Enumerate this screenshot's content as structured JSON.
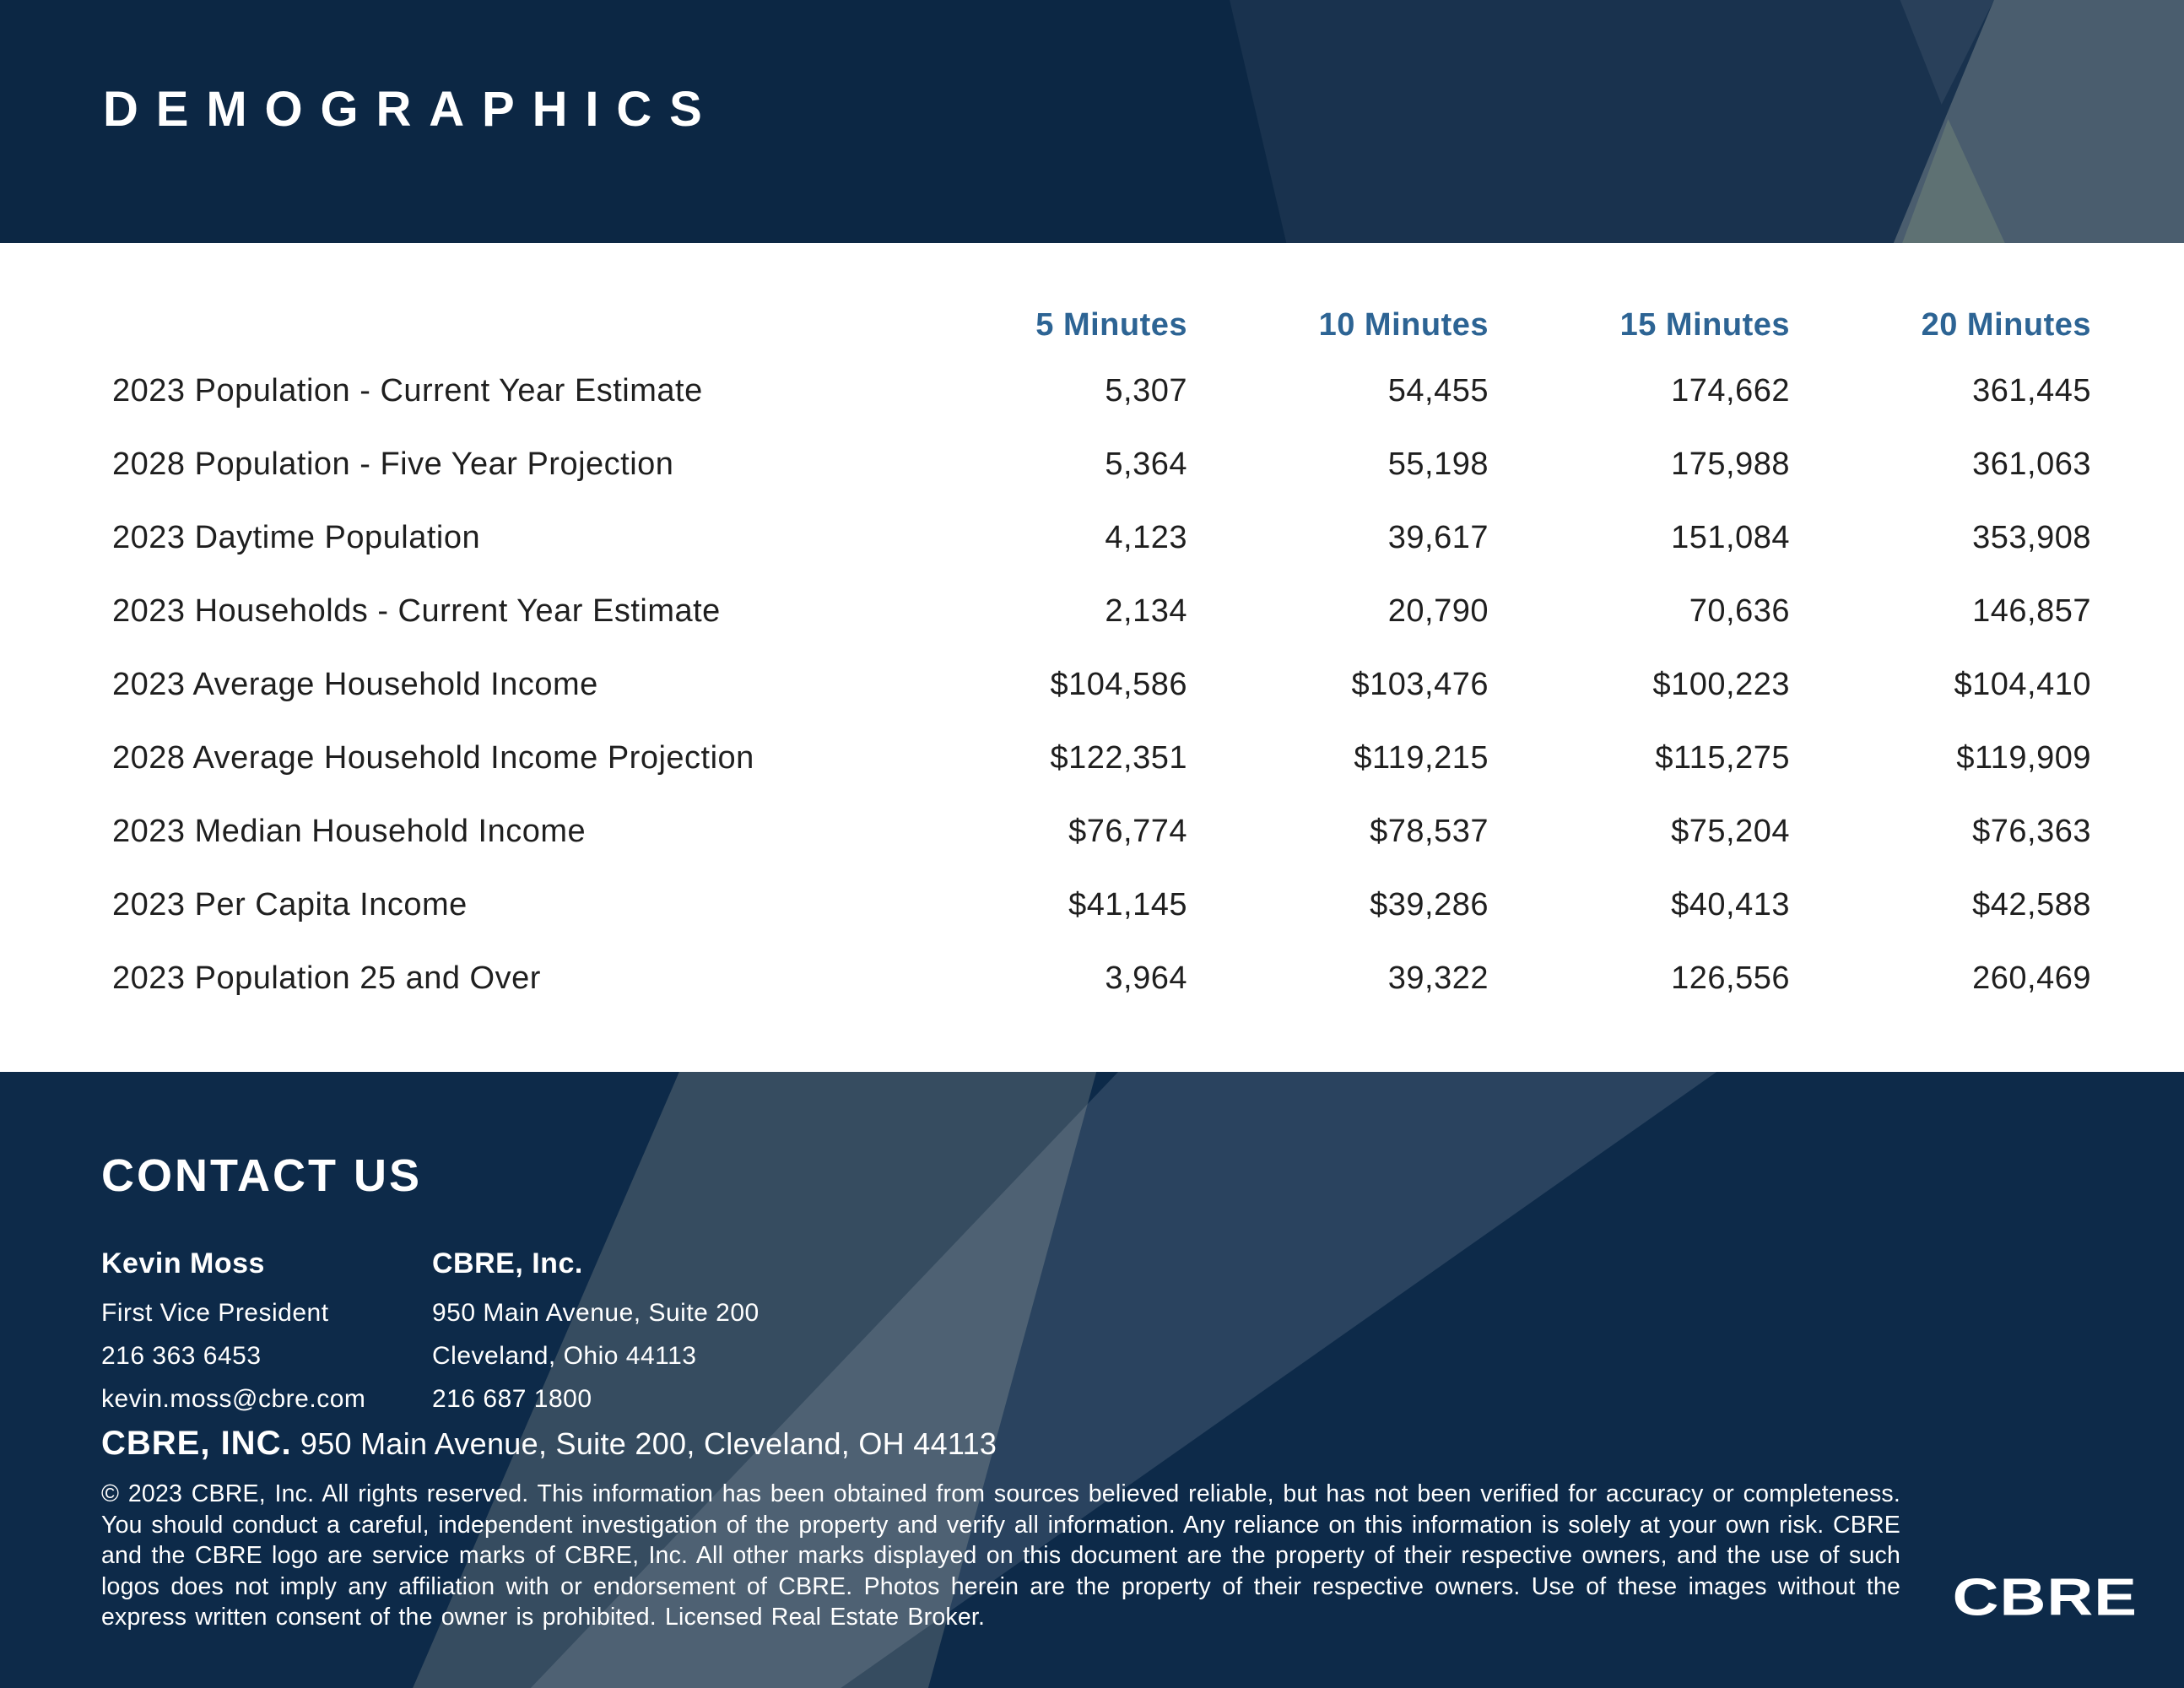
{
  "header": {
    "title": "DEMOGRAPHICS"
  },
  "table": {
    "columns": [
      "5 Minutes",
      "10 Minutes",
      "15 Minutes",
      "20 Minutes"
    ],
    "rows": [
      {
        "label": "2023 Population - Current Year Estimate",
        "values": [
          "5,307",
          "54,455",
          "174,662",
          "361,445"
        ]
      },
      {
        "label": "2028 Population - Five Year Projection",
        "values": [
          "5,364",
          "55,198",
          "175,988",
          "361,063"
        ]
      },
      {
        "label": "2023 Daytime Population",
        "values": [
          "4,123",
          "39,617",
          "151,084",
          "353,908"
        ]
      },
      {
        "label": "2023 Households - Current Year Estimate",
        "values": [
          "2,134",
          "20,790",
          "70,636",
          "146,857"
        ]
      },
      {
        "label": "2023 Average Household Income",
        "values": [
          "$104,586",
          "$103,476",
          "$100,223",
          "$104,410"
        ]
      },
      {
        "label": "2028 Average Household Income Projection",
        "values": [
          "$122,351",
          "$119,215",
          "$115,275",
          "$119,909"
        ]
      },
      {
        "label": "2023 Median Household Income",
        "values": [
          "$76,774",
          "$78,537",
          "$75,204",
          "$76,363"
        ]
      },
      {
        "label": "2023 Per Capita Income",
        "values": [
          "$41,145",
          "$39,286",
          "$40,413",
          "$42,588"
        ]
      },
      {
        "label": "2023 Population 25 and Over",
        "values": [
          "3,964",
          "39,322",
          "126,556",
          "260,469"
        ]
      }
    ]
  },
  "footer": {
    "heading": "CONTACT US",
    "contact": {
      "name": "Kevin Moss",
      "title": "First Vice President",
      "phone": "216 363 6453",
      "email": "kevin.moss@cbre.com"
    },
    "office": {
      "name": "CBRE, Inc.",
      "address1": "950 Main Avenue, Suite 200",
      "address2": "Cleveland, Ohio 44113",
      "phone": "216 687 1800"
    },
    "company_line": {
      "bold": "CBRE, INC.",
      "rest": " 950 Main Avenue, Suite 200, Cleveland, OH 44113"
    },
    "disclaimer": "© 2023 CBRE, Inc. All rights reserved. This information has been obtained from sources believed reliable, but has not been verified for accuracy or completeness. You should conduct a careful, independent investigation of the property and verify all information. Any reliance on this information is solely at your own risk. CBRE and the CBRE logo are service marks of CBRE, Inc. All other marks displayed on this document are the property of their respective owners, and the use of such logos does not imply any affiliation with or endorsement of CBRE. Photos herein are the property of their respective owners. Use of these images without the express written consent of the owner is prohibited. Licensed Real Estate Broker.",
    "logo": "CBRE"
  },
  "colors": {
    "navy": "#0C2744",
    "footer_navy": "#0D2A49",
    "slate": "#4A5D6E",
    "gray_green": "#5E7173",
    "band_slate": "#364C60",
    "column_header_blue": "#2D6494",
    "table_text": "#1F1F1F",
    "white": "#FFFFFF"
  }
}
